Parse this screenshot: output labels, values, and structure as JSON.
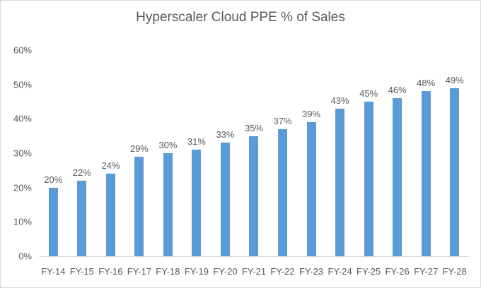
{
  "chart_data": {
    "type": "bar",
    "title": "Hyperscaler Cloud PPE % of Sales",
    "categories": [
      "FY-14",
      "FY-15",
      "FY-16",
      "FY-17",
      "FY-18",
      "FY-19",
      "FY-20",
      "FY-21",
      "FY-22",
      "FY-23",
      "FY-24",
      "FY-25",
      "FY-26",
      "FY-27",
      "FY-28"
    ],
    "values": [
      20,
      22,
      24,
      29,
      30,
      31,
      33,
      35,
      37,
      39,
      43,
      45,
      46,
      48,
      49
    ],
    "value_labels": [
      "20%",
      "22%",
      "24%",
      "29%",
      "30%",
      "31%",
      "33%",
      "35%",
      "37%",
      "39%",
      "43%",
      "45%",
      "46%",
      "48%",
      "49%"
    ],
    "xlabel": "",
    "ylabel": "",
    "ylim": [
      0,
      60
    ],
    "y_ticks": [
      {
        "value": 0,
        "label": "0%"
      },
      {
        "value": 10,
        "label": "10%"
      },
      {
        "value": 20,
        "label": "20%"
      },
      {
        "value": 30,
        "label": "30%"
      },
      {
        "value": 40,
        "label": "40%"
      },
      {
        "value": 50,
        "label": "50%"
      },
      {
        "value": 60,
        "label": "60%"
      }
    ],
    "grid": false,
    "legend": false,
    "data_labels": true,
    "colors": {
      "bar": "#5B9BD5",
      "title_text": "#595959",
      "axis_text": "#595959",
      "axis_line": "#D9D9D9",
      "chart_border": "#D9D9D9",
      "background": "#FFFFFF"
    }
  }
}
